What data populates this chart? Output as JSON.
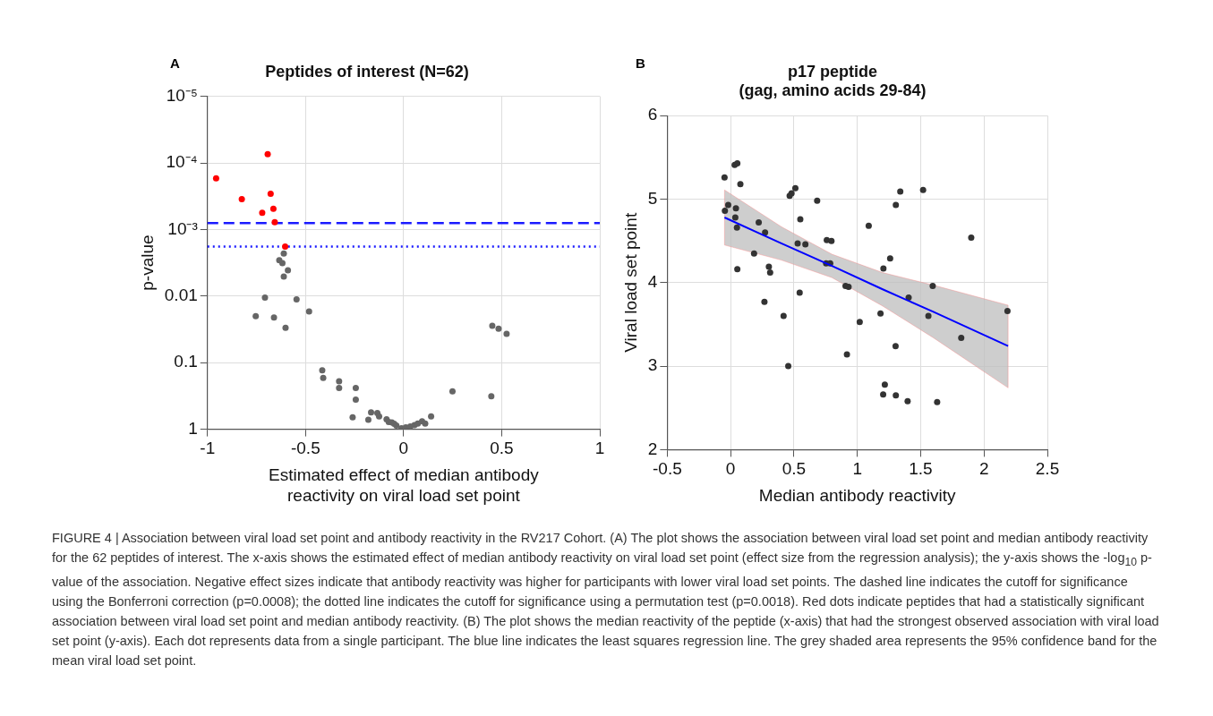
{
  "chart_data": [
    {
      "type": "scatter",
      "title": "Peptides of interest (N=62)",
      "xlabel": "Estimated effect of median antibody\nreactivity on viral load set point",
      "ylabel": "p-value",
      "annotations": [
        "A",
        "FIGURE 4 | Association between viral load set point and antibody reactivity in the RV217 Cohort. (A) The plot shows the association between viral load set point and median antibody reactivity for the 62 peptides of interest. The x-axis shows the estimated effect of median antibody reactivity on viral load set point (effect size from the regression analysis); the y-axis shows the -log$_{10}$ p-value of the association. Negative effect sizes indicate that antibody reactivity was higher for participants with lower viral load set points. The dashed line indicates the cutoff for significance using the Bonferroni correction (p=0.0008); the dotted line indicates the cutoff for significance using a permutation test (p=0.0018). Red dots indicate peptides that had a statistically significant association between viral load set point and median antibody reactivity. (B) The plot shows the median reactivity of the peptide (x-axis) that had the strongest observed association with viral load set point (y-axis). Each dot represents data from a single participant. The blue line indicates the least squares regression line. The grey shaded area represents the 95% confidence band for the mean viral load set point."
      ],
      "log": "y",
      "xlim": [
        -1,
        1
      ],
      "xticks": [
        -1,
        -0.5,
        0,
        0.5,
        1
      ],
      "ylim": [
        1,
        1e-05
      ],
      "yticks": [
        1,
        0.1,
        0.01,
        {
          "value": 0.001,
          "label": "10⁻³"
        },
        {
          "value": 0.0001,
          "label": "10⁻⁴"
        },
        {
          "value": 1e-05,
          "label": "10⁻⁵"
        }
      ],
      "grid": true,
      "marker": "circle",
      "ref_lines": [
        {
          "axis": "y",
          "value": 0.0008,
          "color": "#1a1aff",
          "line_style": "dashed"
        },
        {
          "axis": "y",
          "value": 0.0018,
          "color": "#1a1aff",
          "line_style": "dotted"
        }
      ],
      "series": [
        {
          "color": "#ff0000",
          "x": [
            -0.956,
            -0.693,
            -0.825,
            -0.678,
            -0.721,
            -0.664,
            -0.657,
            -0.604
          ],
          "values": [
            0.00017,
            7.4e-05,
            0.00035,
            0.00029,
            0.00056,
            0.00049,
            0.00078,
            0.0018
          ]
        },
        {
          "color": "#666666",
          "x": [
            -0.611,
            -0.633,
            -0.634,
            -0.618,
            -0.59,
            -0.611,
            -0.707,
            -0.546,
            -0.482,
            -0.754,
            -0.661,
            -0.602,
            0.452,
            0.484,
            0.525,
            -0.415,
            -0.41,
            -0.329,
            -0.329,
            -0.244,
            -0.244,
            0.249,
            0.447,
            -0.26,
            -0.18,
            -0.166,
            -0.134,
            -0.125,
            -0.087,
            -0.076,
            -0.06,
            -0.048,
            -0.037,
            -0.011,
            0.011,
            0.034,
            0.055,
            0.072,
            0.094,
            0.11,
            0.14
          ],
          "values": [
            0.0023,
            null,
            0.0029,
            0.0032,
            0.0041,
            0.0051,
            0.0105,
            0.0112,
            0.017,
            0.02,
            0.021,
            0.03,
            0.028,
            0.031,
            0.037,
            0.13,
            0.17,
            0.19,
            0.24,
            0.24,
            0.36,
            0.27,
            0.32,
            0.66,
            0.72,
            0.56,
            0.57,
            0.64,
            0.71,
            0.78,
            0.79,
            0.83,
            0.88,
            0.97,
            0.94,
            0.91,
            0.87,
            0.82,
            0.76,
            0.82,
            0.64
          ]
        }
      ]
    },
    {
      "type": "scatter",
      "title": "p17 peptide\n(gag, amino acids 29-84)",
      "xlabel": "Median antibody reactivity",
      "ylabel": "Viral load set point",
      "annotations": [
        "B"
      ],
      "xlim": [
        -0.5,
        2.5
      ],
      "xticks": [
        -0.5,
        0,
        0.5,
        1,
        1.5,
        2,
        2.5
      ],
      "ylim": [
        2,
        6
      ],
      "yticks": [
        2,
        3,
        4,
        5,
        6
      ],
      "grid": true,
      "series": [
        {
          "marker": "circle",
          "color": "#333333",
          "x": [
            -0.048,
            0.032,
            0.053,
            0.077,
            -0.045,
            -0.019,
            0.042,
            0.037,
            0.05,
            0.053,
            0.185,
            0.222,
            0.272,
            0.302,
            0.312,
            0.267,
            0.418,
            0.455,
            0.466,
            0.481,
            0.511,
            0.529,
            0.59,
            0.55,
            0.545,
            0.683,
            0.759,
            0.796,
            0.754,
            0.786,
            0.907,
            0.931,
            0.918,
            1.019,
            1.09,
            1.183,
            1.206,
            1.259,
            1.204,
            1.217,
            1.304,
            1.339,
            1.302,
            1.304,
            1.397,
            1.405,
            1.519,
            1.561,
            1.595,
            1.63,
            1.82,
            1.899,
            2.185
          ],
          "values": [
            5.26,
            5.41,
            5.43,
            5.18,
            4.86,
            4.93,
            4.89,
            4.78,
            4.66,
            4.16,
            4.35,
            4.72,
            4.6,
            4.19,
            4.12,
            3.77,
            3.6,
            3.0,
            5.04,
            5.07,
            5.13,
            4.47,
            4.46,
            4.76,
            3.88,
            4.98,
            4.51,
            4.5,
            4.23,
            4.23,
            3.96,
            3.95,
            3.14,
            3.53,
            4.68,
            3.63,
            4.17,
            4.29,
            2.66,
            2.78,
            4.93,
            5.09,
            3.24,
            2.65,
            2.58,
            3.82,
            5.11,
            3.6,
            3.96,
            2.57,
            3.34,
            4.54,
            3.66
          ]
        },
        {
          "type": "line",
          "marker": "none",
          "color": "#0000ff",
          "x": [
            -0.048,
            0.4,
            0.8,
            1.2,
            1.6,
            2.19
          ],
          "values": [
            4.78,
            4.47,
            4.2,
            3.92,
            3.65,
            3.24
          ],
          "lower": [
            4.45,
            4.27,
            4.06,
            3.72,
            3.34,
            2.74
          ],
          "upper": [
            5.11,
            4.67,
            4.34,
            4.12,
            3.97,
            3.73
          ]
        }
      ]
    }
  ]
}
